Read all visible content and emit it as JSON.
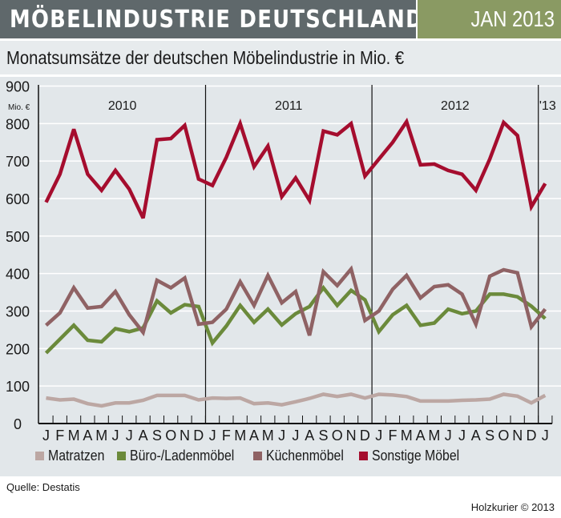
{
  "header": {
    "title": "MÖBELINDUSTRIE DEUTSCHLAND",
    "date": "JAN 2013"
  },
  "subtitle": "Monatsumsätze der deutschen Möbelindustrie in Mio. €",
  "source": "Quelle: Destatis",
  "credit": "Holzkurier © 2013",
  "chart_data": {
    "type": "line",
    "title": "Monatsumsätze der deutschen Möbelindustrie in Mio. €",
    "ylabel": "Mio. €",
    "ylim": [
      0,
      900
    ],
    "yticks": [
      0,
      100,
      200,
      300,
      400,
      500,
      600,
      700,
      800,
      900
    ],
    "grid": true,
    "legend": "bottom",
    "year_labels": [
      "2010",
      "2011",
      "2012",
      "'13"
    ],
    "x": [
      "J",
      "F",
      "M",
      "A",
      "M",
      "J",
      "J",
      "A",
      "S",
      "O",
      "N",
      "D",
      "J",
      "F",
      "M",
      "A",
      "M",
      "J",
      "J",
      "A",
      "S",
      "O",
      "N",
      "D",
      "J",
      "F",
      "M",
      "A",
      "M",
      "J",
      "J",
      "A",
      "S",
      "O",
      "N",
      "D",
      "J"
    ],
    "series": [
      {
        "name": "Matratzen",
        "color": "#bca7a3",
        "values": [
          68,
          63,
          65,
          53,
          47,
          55,
          55,
          62,
          75,
          75,
          75,
          63,
          68,
          67,
          68,
          53,
          55,
          50,
          58,
          67,
          78,
          72,
          78,
          68,
          78,
          76,
          72,
          60,
          60,
          60,
          62,
          63,
          65,
          78,
          73,
          55,
          75
        ]
      },
      {
        "name": "Büro-/Ladenmöbel",
        "color": "#6b8a3b",
        "values": [
          188,
          225,
          262,
          222,
          218,
          253,
          245,
          255,
          327,
          295,
          317,
          312,
          215,
          260,
          315,
          270,
          305,
          263,
          293,
          312,
          362,
          315,
          355,
          330,
          245,
          290,
          315,
          262,
          268,
          305,
          293,
          300,
          345,
          345,
          338,
          313,
          280
        ]
      },
      {
        "name": "Küchenmöbel",
        "color": "#8f6264",
        "values": [
          262,
          295,
          362,
          308,
          312,
          352,
          290,
          243,
          382,
          362,
          388,
          265,
          270,
          305,
          378,
          315,
          395,
          322,
          352,
          235,
          405,
          368,
          412,
          275,
          300,
          358,
          395,
          335,
          365,
          370,
          345,
          265,
          393,
          410,
          402,
          258,
          305
        ]
      },
      {
        "name": "Sonstige Möbel",
        "color": "#a50d2e",
        "values": [
          590,
          665,
          785,
          665,
          622,
          675,
          625,
          548,
          757,
          760,
          795,
          652,
          635,
          710,
          800,
          685,
          740,
          605,
          655,
          595,
          780,
          770,
          800,
          660,
          705,
          750,
          805,
          690,
          692,
          675,
          665,
          622,
          705,
          803,
          768,
          578,
          640
        ]
      }
    ]
  }
}
